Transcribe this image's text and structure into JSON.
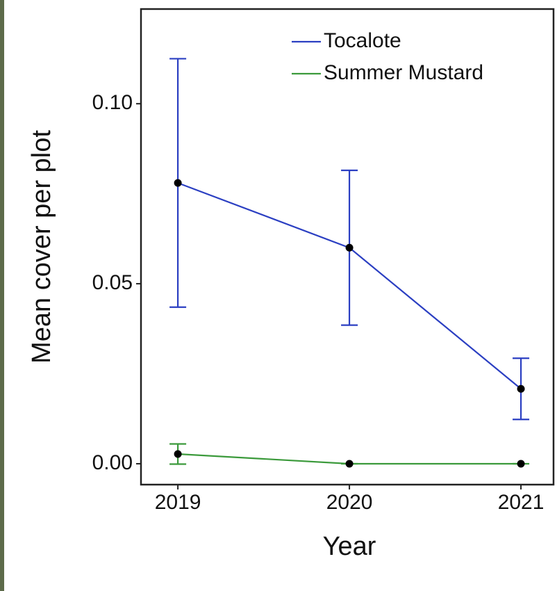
{
  "chart_data": {
    "type": "line",
    "x_label": "Year",
    "y_label": "Mean cover per plot",
    "x": [
      2019,
      2020,
      2021
    ],
    "series": [
      {
        "name": "Tocalote",
        "color": "#2b3fc2",
        "values": [
          0.078,
          0.06,
          0.0208
        ],
        "errors": [
          0.0345,
          0.0215,
          0.0085
        ]
      },
      {
        "name": "Summer Mustard",
        "color": "#3b9a3b",
        "values": [
          0.0027,
          0,
          0
        ],
        "errors": [
          0.0028,
          0,
          0
        ]
      }
    ],
    "xlim": [
      2018.785,
      2021.19
    ],
    "xticks": [
      2019,
      2020,
      2021
    ],
    "ylim": [
      -0.0058,
      0.1263
    ],
    "yticks": [
      {
        "value": 0,
        "label": "0.00"
      },
      {
        "value": 0.05,
        "label": "0.05"
      },
      {
        "value": 0.1,
        "label": "0.10"
      }
    ],
    "legend": "top-right",
    "marker_color": "#000000"
  }
}
